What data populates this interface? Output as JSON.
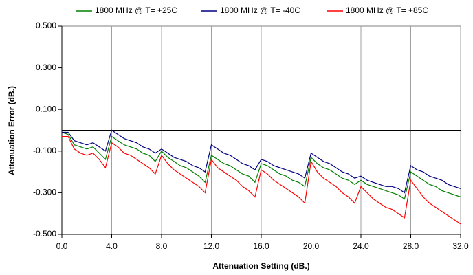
{
  "chart_data": {
    "type": "line",
    "x_label": "Attenuation Setting (dB.)",
    "y_label": "Attenuation Error (dB.)",
    "x": [
      0,
      0.5,
      1,
      1.5,
      2,
      2.5,
      3,
      3.5,
      4,
      4.5,
      5,
      5.5,
      6,
      6.5,
      7,
      7.5,
      8,
      8.5,
      9,
      9.5,
      10,
      10.5,
      11,
      11.5,
      12,
      12.5,
      13,
      13.5,
      14,
      14.5,
      15,
      15.5,
      16,
      16.5,
      17,
      17.5,
      18,
      18.5,
      19,
      19.5,
      20,
      20.5,
      21,
      21.5,
      22,
      22.5,
      23,
      23.5,
      24,
      24.5,
      25,
      25.5,
      26,
      26.5,
      27,
      27.5,
      28,
      28.5,
      29,
      29.5,
      30,
      30.5,
      31,
      31.5,
      32
    ],
    "series": [
      {
        "name": "1800 MHz @ T= +25C",
        "color": "#008000",
        "values": [
          -0.01,
          -0.02,
          -0.07,
          -0.08,
          -0.09,
          -0.08,
          -0.11,
          -0.14,
          -0.03,
          -0.05,
          -0.07,
          -0.08,
          -0.09,
          -0.11,
          -0.12,
          -0.15,
          -0.1,
          -0.13,
          -0.15,
          -0.17,
          -0.18,
          -0.2,
          -0.22,
          -0.25,
          -0.12,
          -0.14,
          -0.16,
          -0.17,
          -0.19,
          -0.21,
          -0.22,
          -0.25,
          -0.16,
          -0.17,
          -0.19,
          -0.21,
          -0.22,
          -0.24,
          -0.25,
          -0.27,
          -0.13,
          -0.16,
          -0.18,
          -0.19,
          -0.21,
          -0.23,
          -0.24,
          -0.26,
          -0.24,
          -0.26,
          -0.27,
          -0.28,
          -0.29,
          -0.3,
          -0.31,
          -0.33,
          -0.2,
          -0.22,
          -0.24,
          -0.26,
          -0.27,
          -0.29,
          -0.3,
          -0.31,
          -0.32
        ]
      },
      {
        "name": "1800 MHz @ T= -40C",
        "color": "#000080",
        "values": [
          -0.01,
          -0.01,
          -0.05,
          -0.06,
          -0.07,
          -0.06,
          -0.08,
          -0.1,
          0.0,
          -0.02,
          -0.04,
          -0.05,
          -0.06,
          -0.08,
          -0.09,
          -0.11,
          -0.09,
          -0.11,
          -0.13,
          -0.14,
          -0.15,
          -0.17,
          -0.18,
          -0.2,
          -0.07,
          -0.09,
          -0.11,
          -0.12,
          -0.14,
          -0.16,
          -0.17,
          -0.19,
          -0.14,
          -0.15,
          -0.17,
          -0.18,
          -0.19,
          -0.2,
          -0.21,
          -0.23,
          -0.11,
          -0.13,
          -0.15,
          -0.16,
          -0.18,
          -0.2,
          -0.21,
          -0.23,
          -0.22,
          -0.24,
          -0.25,
          -0.26,
          -0.27,
          -0.27,
          -0.28,
          -0.3,
          -0.17,
          -0.19,
          -0.2,
          -0.22,
          -0.23,
          -0.24,
          -0.26,
          -0.27,
          -0.28
        ]
      },
      {
        "name": "1800 MHz @ T= +85C",
        "color": "#ff0000",
        "values": [
          -0.03,
          -0.03,
          -0.09,
          -0.11,
          -0.12,
          -0.11,
          -0.14,
          -0.18,
          -0.06,
          -0.08,
          -0.11,
          -0.12,
          -0.14,
          -0.16,
          -0.18,
          -0.21,
          -0.12,
          -0.16,
          -0.19,
          -0.21,
          -0.23,
          -0.25,
          -0.27,
          -0.3,
          -0.14,
          -0.18,
          -0.2,
          -0.22,
          -0.24,
          -0.27,
          -0.29,
          -0.32,
          -0.19,
          -0.21,
          -0.24,
          -0.26,
          -0.28,
          -0.3,
          -0.32,
          -0.35,
          -0.15,
          -0.2,
          -0.23,
          -0.25,
          -0.27,
          -0.3,
          -0.32,
          -0.35,
          -0.27,
          -0.3,
          -0.33,
          -0.35,
          -0.37,
          -0.38,
          -0.4,
          -0.42,
          -0.24,
          -0.28,
          -0.32,
          -0.35,
          -0.37,
          -0.39,
          -0.41,
          -0.43,
          -0.45
        ]
      }
    ],
    "xlim": [
      0,
      32
    ],
    "xticks": [
      {
        "value": 0,
        "label": "0.0"
      },
      {
        "value": 4,
        "label": "4.0"
      },
      {
        "value": 8,
        "label": "8.0"
      },
      {
        "value": 12,
        "label": "12.0"
      },
      {
        "value": 16,
        "label": "16.0"
      },
      {
        "value": 20,
        "label": "20.0"
      },
      {
        "value": 24,
        "label": "24.0"
      },
      {
        "value": 28,
        "label": "28.0"
      },
      {
        "value": 32,
        "label": "32.0"
      }
    ],
    "ylim": [
      -0.5,
      0.5
    ],
    "yticks": [
      {
        "value": 0.5,
        "label": "0.500"
      },
      {
        "value": 0.3,
        "label": "0.300"
      },
      {
        "value": 0.1,
        "label": "0.100"
      },
      {
        "value": -0.1,
        "label": "-0.100"
      },
      {
        "value": -0.3,
        "label": "-0.300"
      },
      {
        "value": -0.5,
        "label": "-0.500"
      }
    ],
    "grid": true,
    "legend": "top"
  }
}
